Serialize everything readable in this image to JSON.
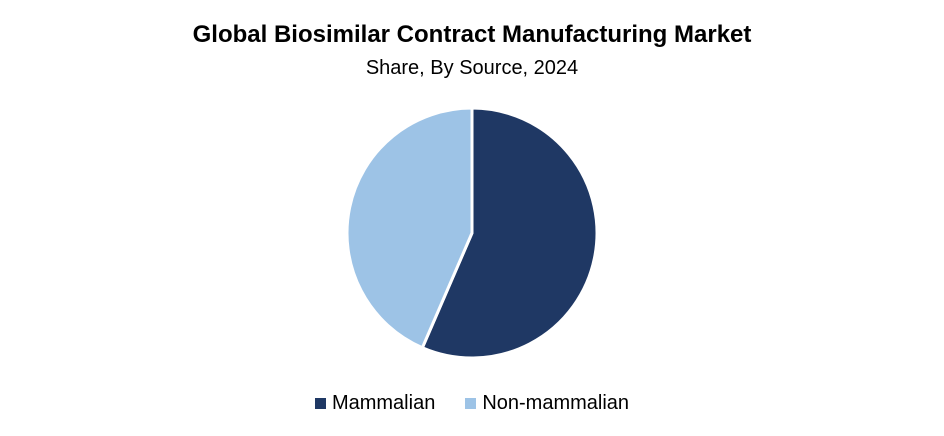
{
  "chart_data": {
    "type": "pie",
    "title": "Global Biosimilar Contract Manufacturing Market",
    "subtitle": "Share, By Source, 2024",
    "categories": [
      "Mammalian",
      "Non-mammalian"
    ],
    "values": [
      56.5,
      43.5
    ],
    "colors": [
      "#1f3864",
      "#9dc3e6"
    ],
    "start_angle_deg": 0,
    "direction": "clockwise",
    "legend_position": "bottom"
  }
}
